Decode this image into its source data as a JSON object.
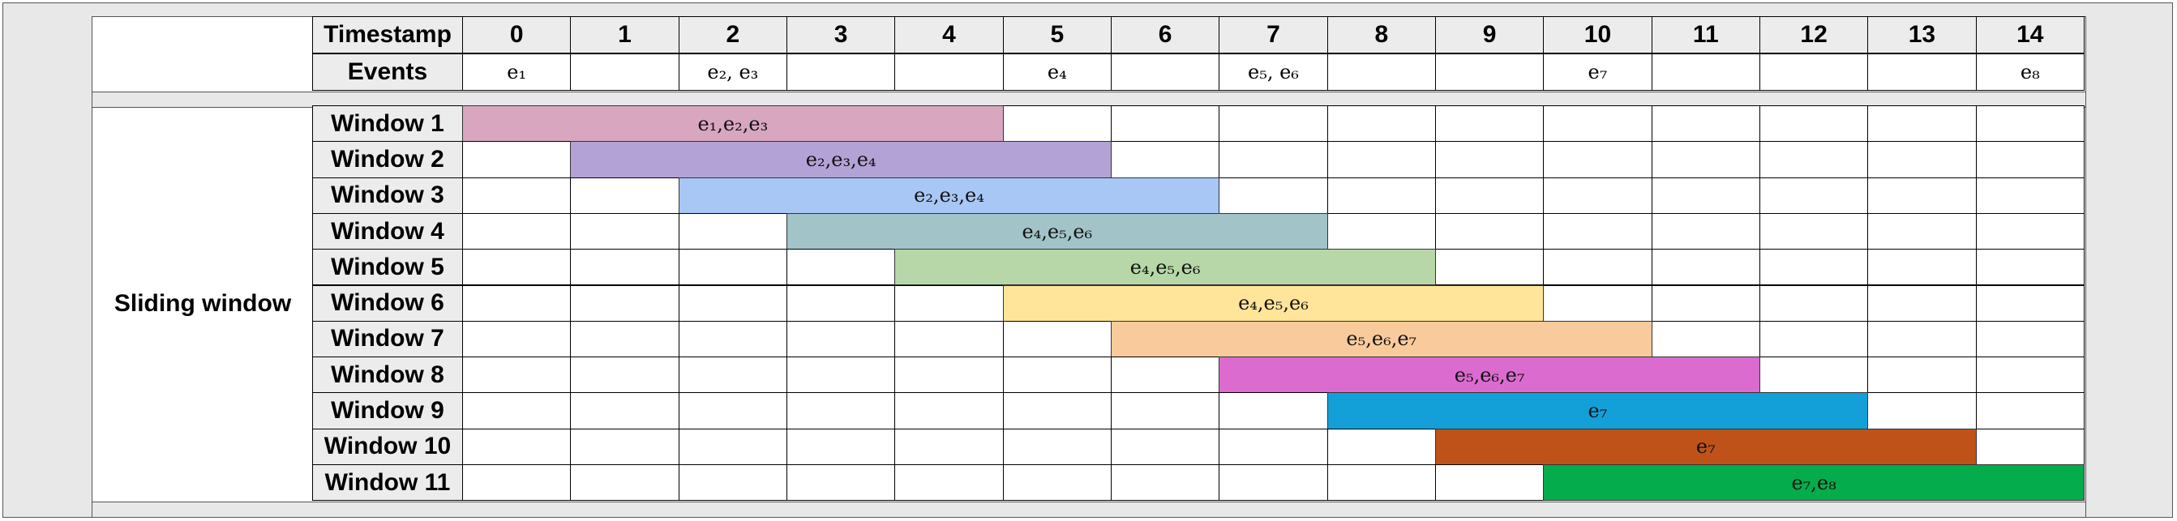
{
  "header": {
    "timestamp_label": "Timestamp",
    "events_label": "Events",
    "timestamps": [
      "0",
      "1",
      "2",
      "3",
      "4",
      "5",
      "6",
      "7",
      "8",
      "9",
      "10",
      "11",
      "12",
      "13",
      "14"
    ],
    "events": [
      "e₁",
      "",
      "e₂, e₃",
      "",
      "",
      "e₄",
      "",
      "e₅, e₆",
      "",
      "",
      "e₇",
      "",
      "",
      "",
      "e₈"
    ]
  },
  "sliding_label": "Sliding window",
  "windows": [
    {
      "label": "Window 1",
      "start": 0,
      "end": 5,
      "events": "e₁,e₂,e₃",
      "color": "#d9a6c0"
    },
    {
      "label": "Window 2",
      "start": 1,
      "end": 6,
      "events": "e₂,e₃,e₄",
      "color": "#b3a2d6"
    },
    {
      "label": "Window 3",
      "start": 2,
      "end": 7,
      "events": "e₂,e₃,e₄",
      "color": "#a8c7f5"
    },
    {
      "label": "Window 4",
      "start": 3,
      "end": 8,
      "events": "e₄,e₅,e₆",
      "color": "#a2c3c8"
    },
    {
      "label": "Window 5",
      "start": 4,
      "end": 9,
      "events": "e₄,e₅,e₆",
      "color": "#b7d7a8"
    },
    {
      "label": "Window 6",
      "start": 5,
      "end": 10,
      "events": "e₄,e₅,e₆",
      "color": "#ffe599"
    },
    {
      "label": "Window 7",
      "start": 6,
      "end": 11,
      "events": "e₅,e₆,e₇",
      "color": "#f9cb9c"
    },
    {
      "label": "Window 8",
      "start": 7,
      "end": 12,
      "events": "e₅,e₆,e₇",
      "color": "#dc6bd0"
    },
    {
      "label": "Window 9",
      "start": 8,
      "end": 13,
      "events": "e₇",
      "color": "#13a0d8"
    },
    {
      "label": "Window 10",
      "start": 9,
      "end": 14,
      "events": "e₇",
      "color": "#bf5218"
    },
    {
      "label": "Window 11",
      "start": 10,
      "end": 15,
      "events": "e₇,e₈",
      "color": "#05ac4b"
    }
  ]
}
